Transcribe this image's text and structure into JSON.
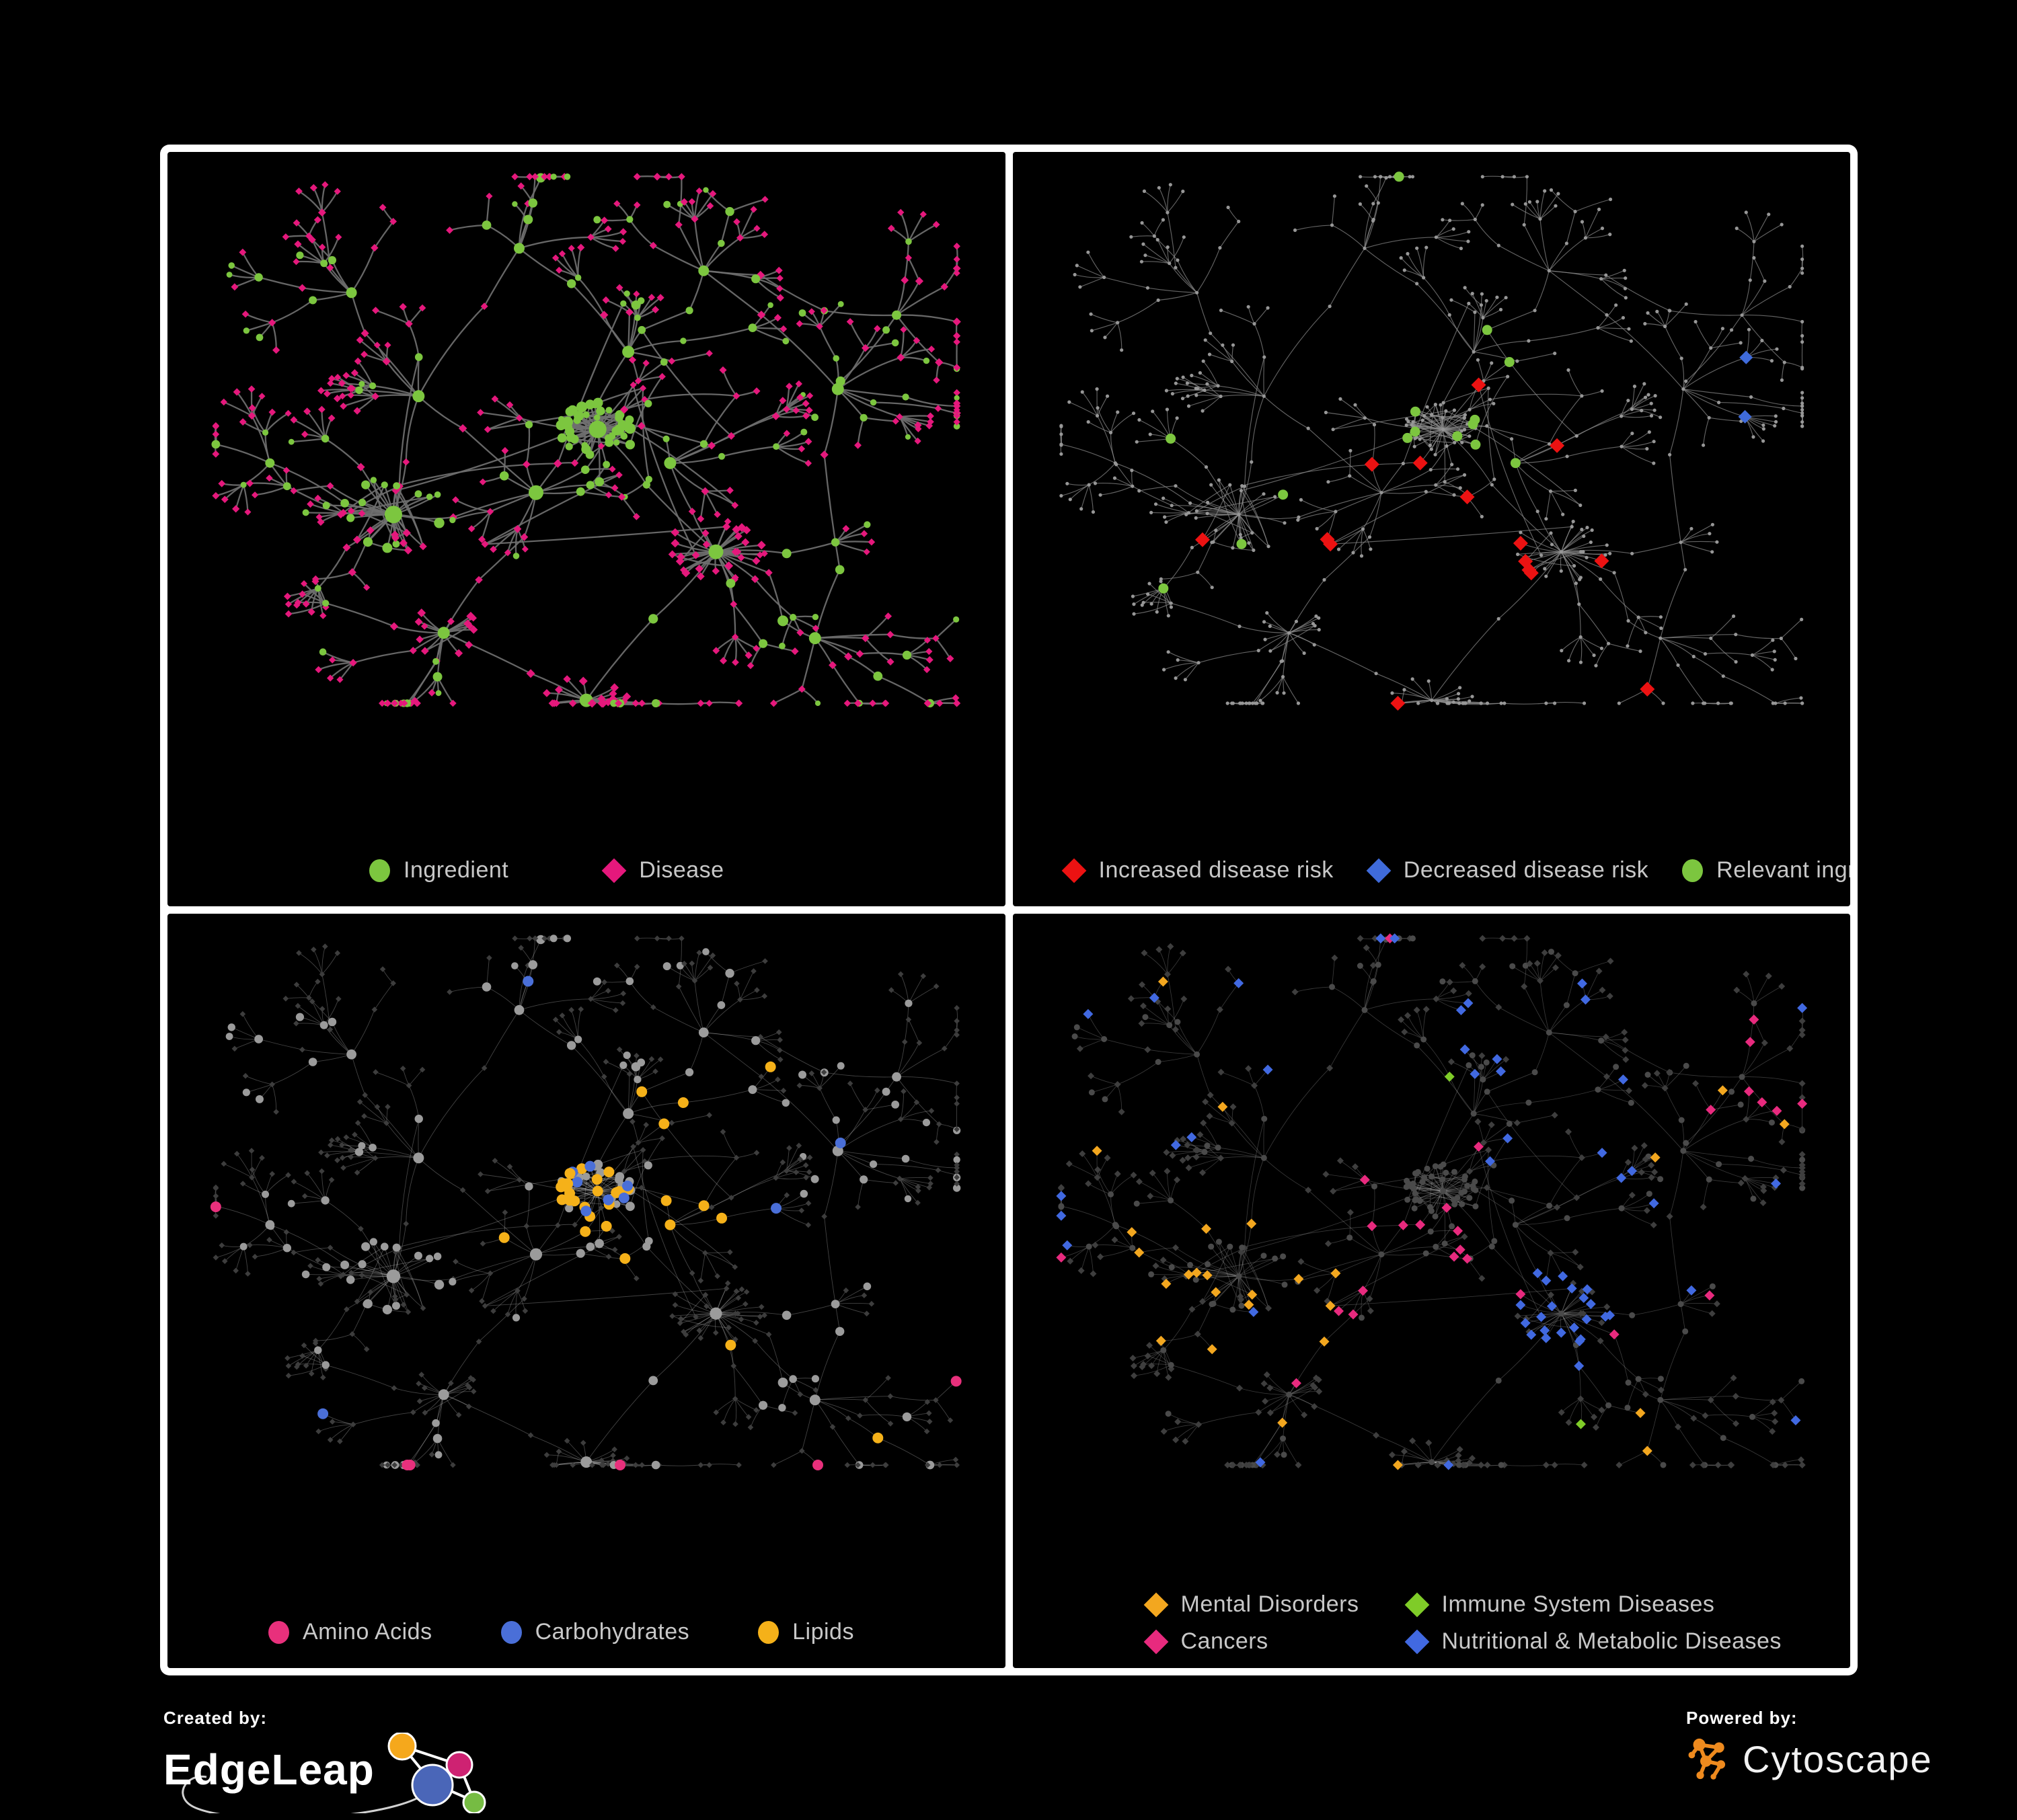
{
  "page": {
    "background": "#000000",
    "frame_color": "#ffffff"
  },
  "branding": {
    "created_by_label": "Created by:",
    "edgeleap_name": "EdgeLeap",
    "powered_by_label": "Powered by:",
    "cytoscape_name": "Cytoscape",
    "cytoscape_color": "#EE8A1E",
    "edgeleap_colors": {
      "orange": "#F5A81C",
      "magenta": "#CE2272",
      "blue": "#4A66B8",
      "green": "#76BC43"
    }
  },
  "panels": [
    {
      "id": "ingredient-disease",
      "legend_rows": [
        [
          {
            "label": "Ingredient",
            "shape": "circle",
            "color": "#7CC63F"
          },
          {
            "label": "Disease",
            "shape": "diamond",
            "color": "#E5187C"
          }
        ]
      ],
      "style": {
        "seed": 11,
        "edge": "#6f6f6f",
        "ew": 2.3,
        "eo": 0.92,
        "ingredient": "#7CC63F",
        "disease": "#E5187C"
      }
    },
    {
      "id": "disease-risk",
      "legend_rows": [
        [
          {
            "label": "Increased disease risk",
            "shape": "diamond",
            "color": "#EC1212"
          },
          {
            "label": "Decreased disease risk",
            "shape": "diamond",
            "color": "#3F6BDB"
          },
          {
            "label": "Relevant ingredient",
            "shape": "circle",
            "color": "#7CC63F"
          }
        ]
      ],
      "style": {
        "seed": 777,
        "edge": "#8d8d8d",
        "ew": 1.15,
        "eo": 0.7,
        "dim": "#979797",
        "red": "#EC1212",
        "blue": "#3F6BDB",
        "silver": "#ADADAD",
        "green": "#7CC63F"
      }
    },
    {
      "id": "nutrient-classes",
      "legend_rows": [
        [
          {
            "label": "Amino Acids",
            "shape": "circle",
            "color": "#E8307C"
          },
          {
            "label": "Carbohydrates",
            "shape": "circle",
            "color": "#4A6FD8"
          },
          {
            "label": "Lipids",
            "shape": "circle",
            "color": "#F5B119"
          }
        ]
      ],
      "style": {
        "seed": 333,
        "edge": "#cfcfcf",
        "ew": 0.9,
        "eo": 0.32,
        "ing_dim": "#9B9B9B",
        "dis_dim": "#3D3D3D",
        "amino": "#E8307C",
        "carb": "#4A6FD8",
        "lipid": "#F5B119"
      }
    },
    {
      "id": "disease-classes",
      "legend_rows": [
        [
          {
            "label": "Mental Disorders",
            "shape": "diamond",
            "color": "#F3A71F"
          },
          {
            "label": "Immune System Diseases",
            "shape": "diamond",
            "color": "#7FCC28"
          }
        ],
        [
          {
            "label": "Cancers",
            "shape": "diamond",
            "color": "#E82A7E"
          },
          {
            "label": "Nutritional & Metabolic Diseases",
            "shape": "diamond",
            "color": "#4169E1"
          }
        ]
      ],
      "style": {
        "seed": 555,
        "edge": "#bdbdbd",
        "ew": 0.85,
        "eo": 0.3,
        "ing_dim": "#4A4A4A",
        "dis_dim": "#3E3E3E",
        "mental": "#F3A71F",
        "immune": "#7FCC28",
        "cancer": "#E82A7E",
        "nutri": "#4169E1"
      }
    }
  ],
  "network": {
    "seed": 42,
    "geometry_seed": 99,
    "hubs": [
      [
        515,
        437,
        4,
        13
      ],
      [
        434,
        544,
        7,
        11
      ],
      [
        247,
        581,
        6,
        13
      ],
      [
        280,
        381,
        5,
        9
      ],
      [
        555,
        306,
        6,
        9
      ],
      [
        412,
        131,
        6,
        8
      ],
      [
        192,
        206,
        6,
        8
      ],
      [
        654,
        169,
        6,
        8
      ],
      [
        830,
        369,
        7,
        9
      ],
      [
        670,
        644,
        4,
        11
      ],
      [
        800,
        790,
        6,
        9
      ],
      [
        313,
        781,
        5,
        9
      ],
      [
        500,
        895,
        3,
        10
      ],
      [
        85,
        494,
        4,
        7
      ],
      [
        610,
        494,
        5,
        9
      ],
      [
        907,
        244,
        5,
        7
      ]
    ],
    "spine": [
      [
        0,
        1
      ],
      [
        1,
        2
      ],
      [
        2,
        3
      ],
      [
        3,
        5
      ],
      [
        3,
        6
      ],
      [
        0,
        4
      ],
      [
        4,
        5
      ],
      [
        4,
        7
      ],
      [
        7,
        8
      ],
      [
        0,
        14
      ],
      [
        14,
        9
      ],
      [
        9,
        10
      ],
      [
        1,
        11
      ],
      [
        11,
        12
      ],
      [
        9,
        12
      ],
      [
        2,
        13
      ],
      [
        8,
        15
      ],
      [
        7,
        15
      ],
      [
        8,
        10
      ],
      [
        1,
        3
      ],
      [
        0,
        9
      ]
    ],
    "clusters": [
      {
        "hub": 0,
        "n": 42,
        "r": 52,
        "kind": "ing",
        "link": 0.8
      },
      {
        "hub": 2,
        "n": 26,
        "r": 72,
        "kind": "mixed",
        "link": 0.5
      },
      {
        "hub": 9,
        "n": 30,
        "r": 66,
        "kind": "dis",
        "link": 0.25
      },
      {
        "hub": 12,
        "n": 20,
        "r": 56,
        "kind": "dis",
        "link": 0.15
      },
      {
        "hub": 11,
        "n": 13,
        "r": 50,
        "kind": "dis",
        "link": 0.2
      }
    ],
    "extra_center_edges": 16,
    "blue_pair_target": [
      895,
      360
    ]
  }
}
